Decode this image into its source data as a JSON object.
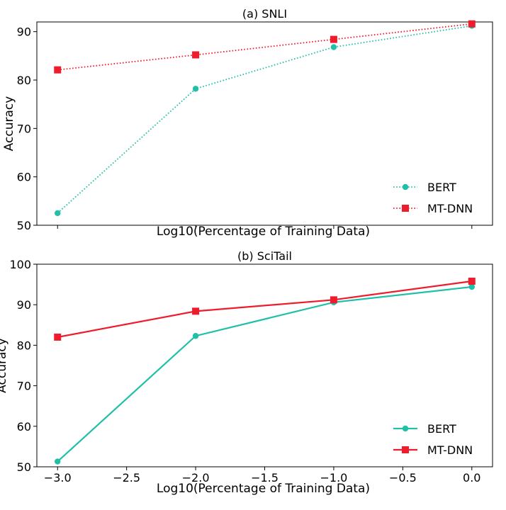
{
  "chart_data": [
    {
      "type": "line",
      "title": "(a) SNLI",
      "xlabel": "Log10(Percentage of Training Data)",
      "ylabel": "Accuracy",
      "x": [
        -3.0,
        -2.0,
        -1.0,
        0.0
      ],
      "xlim": [
        -3.15,
        0.15
      ],
      "ylim": [
        50,
        92
      ],
      "yticks": [
        50,
        60,
        70,
        80,
        90
      ],
      "xticks": [],
      "line_style": "dotted",
      "series": [
        {
          "name": "BERT",
          "color": "#20c0a8",
          "marker": "circle",
          "values": [
            52.5,
            78.2,
            86.8,
            91.2
          ]
        },
        {
          "name": "MT-DNN",
          "color": "#ee1c2c",
          "marker": "square",
          "values": [
            82.1,
            85.2,
            88.4,
            91.6
          ]
        }
      ],
      "legend_position": "lower-right"
    },
    {
      "type": "line",
      "title": "(b) SciTail",
      "xlabel": "Log10(Percentage of Training Data)",
      "ylabel": "Accuracy",
      "x": [
        -3.0,
        -2.0,
        -1.0,
        0.0
      ],
      "xlim": [
        -3.15,
        0.15
      ],
      "ylim": [
        50,
        100
      ],
      "yticks": [
        50,
        60,
        70,
        80,
        90,
        100
      ],
      "xticks": [
        "−3.0",
        "−2.5",
        "−2.0",
        "−1.5",
        "−1.0",
        "−0.5",
        "0.0"
      ],
      "xtick_values": [
        -3.0,
        -2.5,
        -2.0,
        -1.5,
        -1.0,
        -0.5,
        0.0
      ],
      "line_style": "solid",
      "series": [
        {
          "name": "BERT",
          "color": "#20c0a8",
          "marker": "circle",
          "values": [
            51.3,
            82.3,
            90.6,
            94.4
          ]
        },
        {
          "name": "MT-DNN",
          "color": "#ee1c2c",
          "marker": "square",
          "values": [
            82.0,
            88.4,
            91.2,
            95.8
          ]
        }
      ],
      "legend_position": "lower-right"
    }
  ]
}
